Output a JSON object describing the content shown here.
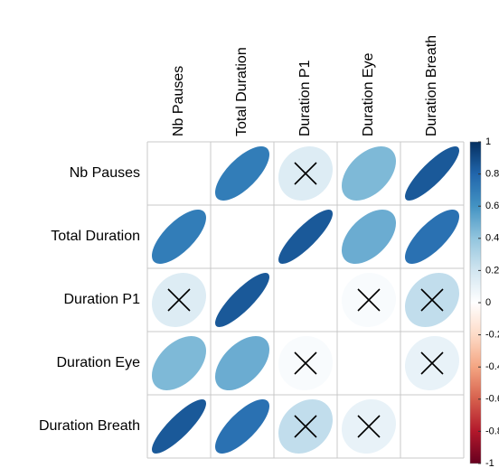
{
  "chart_data": {
    "type": "corrplot",
    "labels": [
      "Nb Pauses",
      "Total Duration",
      "Duration P1",
      "Duration Eye",
      "Duration Breath"
    ],
    "matrix": [
      [
        null,
        0.7,
        0.15,
        0.45,
        0.85
      ],
      [
        0.7,
        null,
        0.85,
        0.5,
        0.75
      ],
      [
        0.15,
        0.85,
        null,
        0.03,
        0.25
      ],
      [
        0.45,
        0.5,
        0.03,
        null,
        0.1
      ],
      [
        0.85,
        0.75,
        0.25,
        0.1,
        null
      ]
    ],
    "insignificant": [
      [
        false,
        false,
        true,
        false,
        false
      ],
      [
        false,
        false,
        false,
        false,
        false
      ],
      [
        true,
        false,
        false,
        true,
        true
      ],
      [
        false,
        false,
        true,
        false,
        true
      ],
      [
        false,
        false,
        true,
        true,
        false
      ]
    ],
    "colors": [
      "#67001F",
      "#B2182B",
      "#D6604D",
      "#F4A582",
      "#FDDBC7",
      "#FFFFFF",
      "#D1E5F0",
      "#92C5DE",
      "#4393C3",
      "#2166AC",
      "#053061"
    ],
    "clim": [
      -1,
      1
    ],
    "colorbar_ticks": [
      1,
      0.8,
      0.6,
      0.4,
      0.2,
      0,
      -0.2,
      -0.4,
      -0.6,
      -0.8,
      -1
    ]
  }
}
